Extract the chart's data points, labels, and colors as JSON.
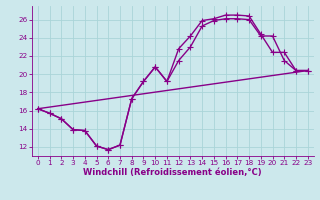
{
  "xlabel": "Windchill (Refroidissement éolien,°C)",
  "bg_color": "#cce8ec",
  "line_color": "#880088",
  "xlim": [
    -0.5,
    23.5
  ],
  "ylim": [
    11.0,
    27.5
  ],
  "xticks": [
    0,
    1,
    2,
    3,
    4,
    5,
    6,
    7,
    8,
    9,
    10,
    11,
    12,
    13,
    14,
    15,
    16,
    17,
    18,
    19,
    20,
    21,
    22,
    23
  ],
  "yticks": [
    12,
    14,
    16,
    18,
    20,
    22,
    24,
    26
  ],
  "grid_color": "#aad4d8",
  "curve1_x": [
    0,
    1,
    2,
    3,
    4,
    5,
    6,
    7,
    8,
    9,
    10,
    11,
    12,
    13,
    14,
    15,
    16,
    17,
    18,
    19,
    20,
    21,
    22,
    23
  ],
  "curve1_y": [
    16.2,
    15.7,
    15.1,
    13.9,
    13.8,
    12.1,
    11.7,
    12.2,
    17.3,
    19.2,
    20.8,
    19.2,
    22.8,
    24.2,
    25.9,
    26.1,
    26.5,
    26.5,
    26.4,
    24.4,
    22.4,
    22.4,
    20.4,
    20.4
  ],
  "curve2_x": [
    0,
    1,
    2,
    3,
    4,
    5,
    6,
    7,
    8,
    9,
    10,
    11,
    12,
    13,
    14,
    15,
    16,
    17,
    18,
    19,
    20,
    21,
    22,
    23
  ],
  "curve2_y": [
    16.2,
    15.7,
    15.1,
    13.9,
    13.8,
    12.1,
    11.7,
    12.2,
    17.3,
    19.2,
    20.8,
    19.2,
    21.5,
    23.0,
    25.3,
    25.9,
    26.1,
    26.1,
    26.0,
    24.2,
    24.2,
    21.5,
    20.4,
    20.4
  ],
  "curve3_x": [
    0,
    23
  ],
  "curve3_y": [
    16.2,
    20.4
  ],
  "markersize": 2.5,
  "linewidth": 1.0,
  "tick_fontsize": 5.2,
  "label_fontsize": 6.0
}
